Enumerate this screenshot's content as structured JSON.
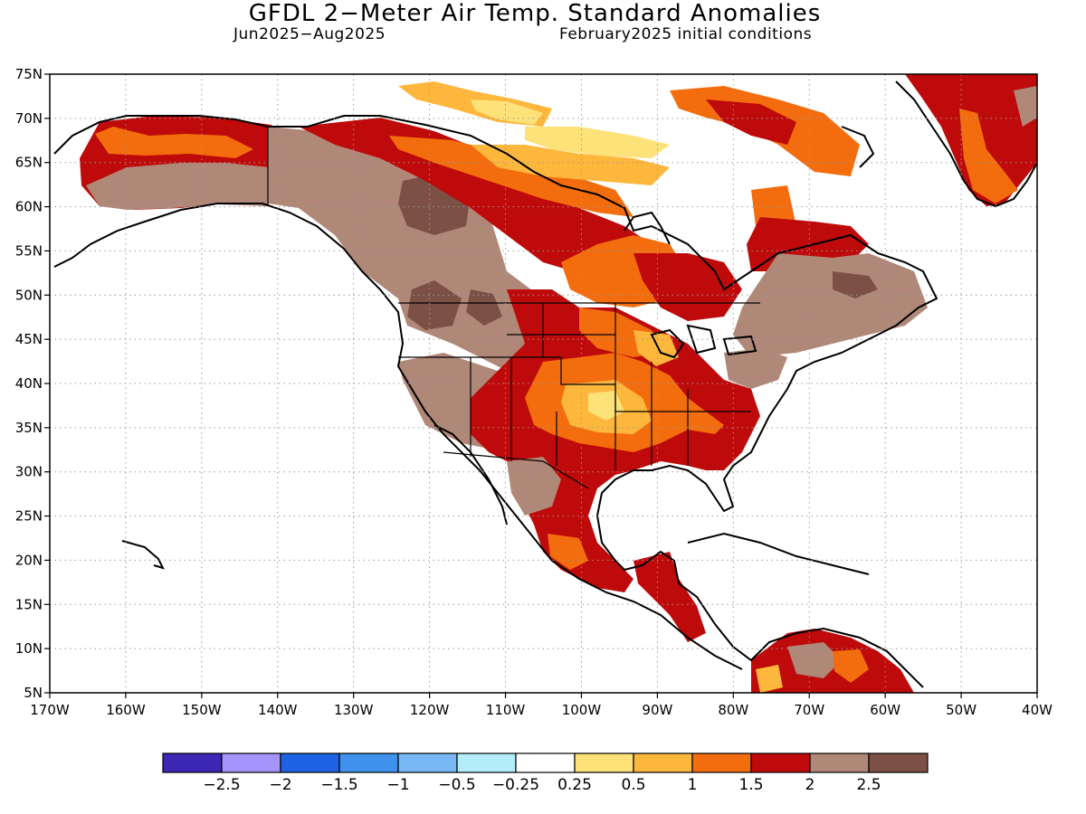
{
  "header": {
    "title": "GFDL 2−Meter Air Temp. Standard Anomalies",
    "period": "Jun2025−Aug2025",
    "init": "February2025 initial conditions"
  },
  "map": {
    "lat_labels": [
      "75N",
      "70N",
      "65N",
      "60N",
      "55N",
      "50N",
      "45N",
      "40N",
      "35N",
      "30N",
      "25N",
      "20N",
      "15N",
      "10N",
      "5N"
    ],
    "lon_labels": [
      "170W",
      "160W",
      "150W",
      "140W",
      "130W",
      "120W",
      "110W",
      "100W",
      "90W",
      "80W",
      "70W",
      "60W",
      "50W",
      "40W"
    ],
    "land_color": "#ffffff",
    "coast_color": "#000000"
  },
  "colorbar": {
    "colors": [
      "#3d27b5",
      "#a594fb",
      "#1e63e6",
      "#3f93ec",
      "#7ab8f5",
      "#b4ecfa",
      "#ffffff",
      "#fde27a",
      "#fdb73c",
      "#f36d0e",
      "#be0a0a",
      "#b08878",
      "#7c5044"
    ],
    "labels": [
      "−2.5",
      "−2",
      "−1.5",
      "−1",
      "−0.5",
      "−0.25",
      "0.25",
      "0.5",
      "1",
      "1.5",
      "2",
      "2.5"
    ]
  },
  "anomaly_colors": {
    "very_high": "#7c5044",
    "high": "#b08878",
    "red": "#be0a0a",
    "orange": "#f36d0e",
    "light_orange": "#fdb73c",
    "yellow": "#fde27a"
  }
}
